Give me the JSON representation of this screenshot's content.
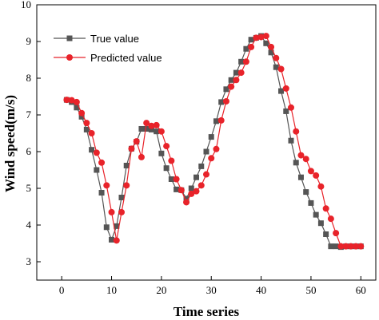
{
  "chart_data": {
    "type": "line",
    "xlabel": "Time series",
    "ylabel": "Wind speed(m/s)",
    "xlim": [
      -5,
      63
    ],
    "ylim": [
      2.5,
      10
    ],
    "xticks": [
      0,
      10,
      20,
      30,
      40,
      50,
      60
    ],
    "yticks": [
      3,
      4,
      5,
      6,
      7,
      8,
      9,
      10
    ],
    "legend_position": "top-left",
    "series": [
      {
        "name": "True value",
        "marker": "square",
        "color": "#555555",
        "x": [
          1,
          2,
          3,
          4,
          5,
          6,
          7,
          8,
          9,
          10,
          11,
          12,
          13,
          14,
          15,
          16,
          17,
          18,
          19,
          20,
          21,
          22,
          23,
          24,
          25,
          26,
          27,
          28,
          29,
          30,
          31,
          32,
          33,
          34,
          35,
          36,
          37,
          38,
          39,
          40,
          41,
          42,
          43,
          44,
          45,
          46,
          47,
          48,
          49,
          50,
          51,
          52,
          53,
          54,
          55,
          56,
          57,
          58,
          59,
          60
        ],
        "y": [
          7.41,
          7.35,
          7.2,
          6.95,
          6.6,
          6.05,
          5.5,
          4.88,
          3.94,
          3.6,
          3.97,
          4.75,
          5.62,
          6.08,
          6.27,
          6.62,
          6.62,
          6.6,
          6.55,
          5.95,
          5.55,
          5.25,
          4.97,
          4.95,
          4.72,
          5.0,
          5.3,
          5.6,
          6.0,
          6.4,
          6.83,
          7.35,
          7.7,
          7.95,
          8.15,
          8.45,
          8.8,
          9.05,
          9.1,
          9.15,
          8.95,
          8.7,
          8.3,
          7.65,
          7.1,
          6.3,
          5.7,
          5.3,
          4.9,
          4.6,
          4.28,
          4.05,
          3.75,
          3.42,
          3.42,
          3.4,
          3.42,
          3.42,
          3.42,
          3.42
        ]
      },
      {
        "name": "Predicted value",
        "marker": "circle",
        "color": "#e8232a",
        "x": [
          1,
          2,
          3,
          4,
          5,
          6,
          7,
          8,
          9,
          10,
          11,
          12,
          13,
          14,
          15,
          16,
          17,
          18,
          19,
          20,
          21,
          22,
          23,
          24,
          25,
          26,
          27,
          28,
          29,
          30,
          31,
          32,
          33,
          34,
          35,
          36,
          37,
          38,
          39,
          40,
          41,
          42,
          43,
          44,
          45,
          46,
          47,
          48,
          49,
          50,
          51,
          52,
          53,
          54,
          55,
          56,
          57,
          58,
          59,
          60
        ],
        "y": [
          7.41,
          7.4,
          7.35,
          7.05,
          6.78,
          6.5,
          5.97,
          5.7,
          5.08,
          4.35,
          3.58,
          4.35,
          5.08,
          6.08,
          6.28,
          5.85,
          6.78,
          6.7,
          6.72,
          6.55,
          6.15,
          5.75,
          5.25,
          4.95,
          4.62,
          4.85,
          4.92,
          5.08,
          5.38,
          5.82,
          6.07,
          6.85,
          7.37,
          7.77,
          7.95,
          8.15,
          8.45,
          8.85,
          9.1,
          9.12,
          9.15,
          8.85,
          8.55,
          8.25,
          7.72,
          7.2,
          6.55,
          5.9,
          5.8,
          5.47,
          5.35,
          5.05,
          4.45,
          4.17,
          3.78,
          3.42,
          3.42,
          3.42,
          3.42,
          3.42
        ]
      }
    ]
  }
}
